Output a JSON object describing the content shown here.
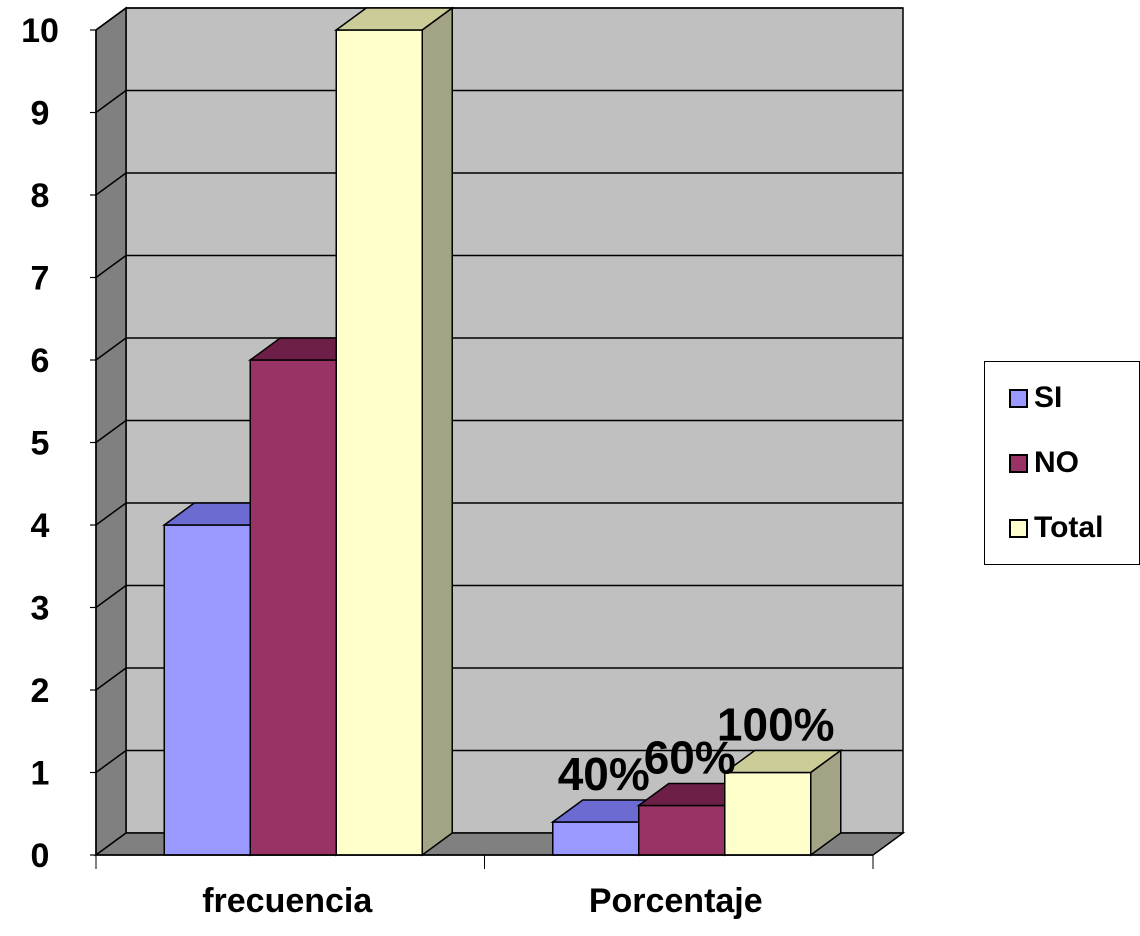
{
  "chart_data": {
    "type": "bar",
    "categories": [
      "frecuencia",
      "Porcentaje"
    ],
    "series": [
      {
        "name": "SI",
        "values": [
          4,
          0.4
        ],
        "color": "#9999ff",
        "top_color": "#6b6bd1",
        "side_color": "#7a7acc",
        "data_labels": [
          "",
          "40%"
        ]
      },
      {
        "name": "NO",
        "values": [
          6,
          0.6
        ],
        "color": "#993366",
        "top_color": "#6e1f47",
        "side_color": "#7a2952",
        "data_labels": [
          "",
          "60%"
        ]
      },
      {
        "name": "Total",
        "values": [
          10,
          1.0
        ],
        "color": "#ffffcc",
        "top_color": "#cccc99",
        "side_color": "#a3a385",
        "data_labels": [
          "",
          "100%"
        ]
      }
    ],
    "ylim": [
      0,
      10
    ],
    "yticks": [
      "0",
      "1",
      "2",
      "3",
      "4",
      "5",
      "6",
      "7",
      "8",
      "9",
      "10"
    ],
    "grid": true,
    "legend_position": "right",
    "background_color": "#c0c0c0",
    "side_wall_color": "#808080"
  }
}
